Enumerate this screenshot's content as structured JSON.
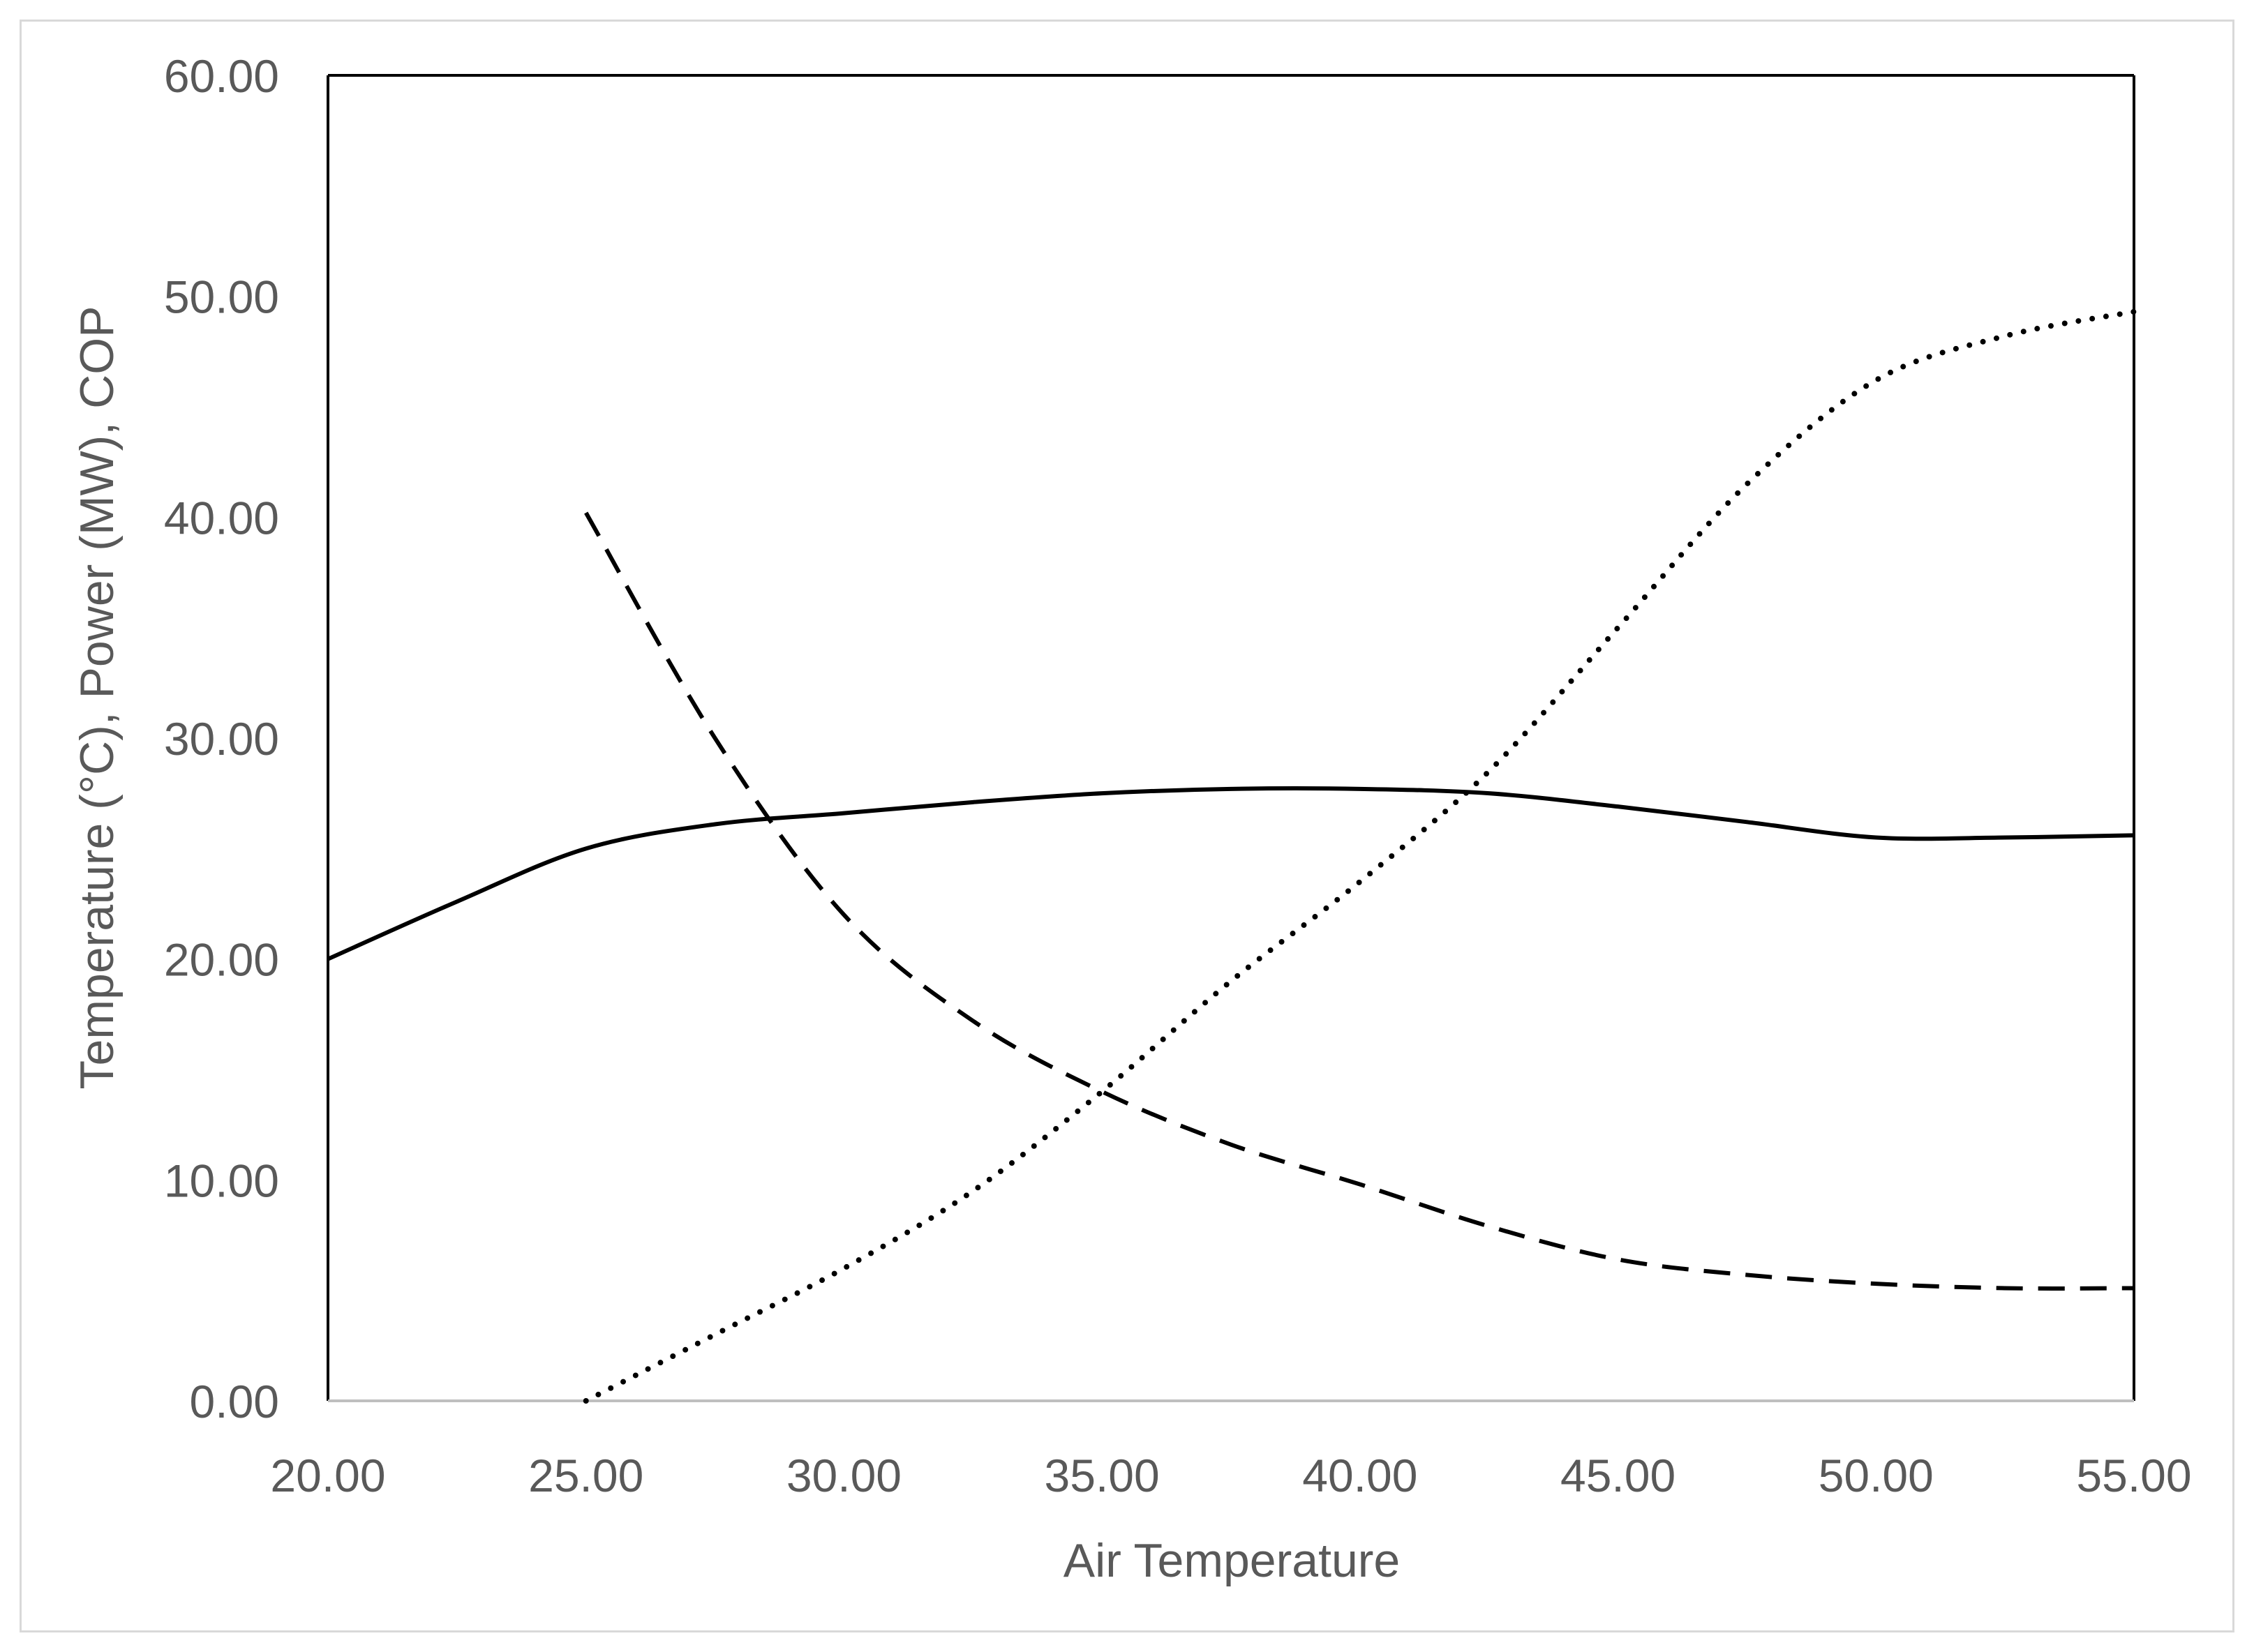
{
  "chart_data": {
    "type": "line",
    "title": "",
    "xlabel": "Air Temperature",
    "ylabel": "Temperature (°C), Power (MW), COP",
    "xlim": [
      20,
      55
    ],
    "ylim": [
      0,
      60
    ],
    "x_ticks": [
      "20.00",
      "25.00",
      "30.00",
      "35.00",
      "40.00",
      "45.00",
      "50.00",
      "55.00"
    ],
    "y_ticks": [
      "0.00",
      "10.00",
      "20.00",
      "30.00",
      "40.00",
      "50.00",
      "60.00"
    ],
    "grid": false,
    "legend": "none",
    "colors": {
      "line": "#000000",
      "text": "#595959",
      "axis": "#000000",
      "border": "#d9d9d9"
    },
    "series": [
      {
        "style": "solid",
        "x": [
          20,
          22.5,
          25,
          27.5,
          30,
          32.5,
          35,
          37.5,
          40,
          42.5,
          45,
          47.5,
          50,
          52.5,
          55
        ],
        "y": [
          20.0,
          22.6,
          25.0,
          26.1,
          26.6,
          27.1,
          27.5,
          27.7,
          27.7,
          27.5,
          26.9,
          26.2,
          25.5,
          25.5,
          25.6
        ]
      },
      {
        "style": "dashed",
        "x": [
          25,
          27.5,
          30,
          32.5,
          35,
          37.5,
          40,
          42.5,
          45,
          47.5,
          50,
          52.5,
          55
        ],
        "y": [
          40.2,
          30.0,
          22.0,
          17.2,
          14.0,
          11.6,
          9.8,
          7.9,
          6.4,
          5.7,
          5.3,
          5.1,
          5.1
        ]
      },
      {
        "style": "dotted",
        "x": [
          25,
          27.5,
          30,
          32.5,
          35,
          37.5,
          40,
          42.5,
          45,
          47.5,
          50,
          52.5,
          55
        ],
        "y": [
          0.0,
          3.0,
          6.0,
          9.5,
          14.0,
          19.0,
          23.5,
          28.5,
          35.0,
          41.5,
          46.2,
          48.2,
          49.3
        ]
      }
    ]
  }
}
